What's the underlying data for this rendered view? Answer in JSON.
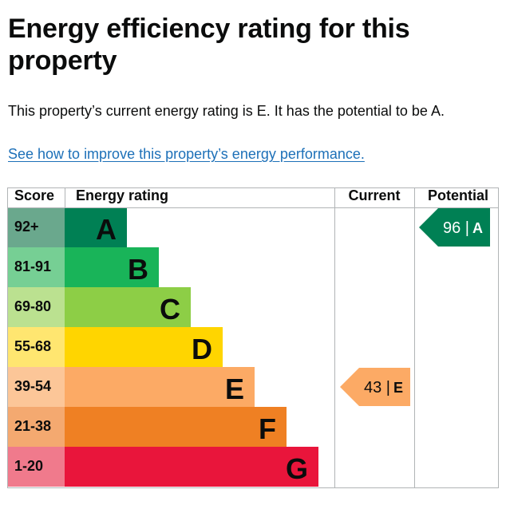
{
  "page": {
    "heading": "Energy efficiency rating for this property",
    "summary": "This property’s current energy rating is E. It has the potential to be A.",
    "improve_link": "See how to improve this property’s energy performance."
  },
  "chart_data": {
    "type": "table",
    "headers": {
      "score": "Score",
      "rating": "Energy rating",
      "current": "Current",
      "potential": "Potential"
    },
    "bands": [
      {
        "score": "92+",
        "letter": "A",
        "color": "#008054",
        "score_bg": "#6aa88d"
      },
      {
        "score": "81-91",
        "letter": "B",
        "color": "#19b459",
        "score_bg": "#76cf94"
      },
      {
        "score": "69-80",
        "letter": "C",
        "color": "#8dce46",
        "score_bg": "#bbe190"
      },
      {
        "score": "55-68",
        "letter": "D",
        "color": "#ffd500",
        "score_bg": "#ffe670"
      },
      {
        "score": "39-54",
        "letter": "E",
        "color": "#fcaa65",
        "score_bg": "#fcc698"
      },
      {
        "score": "21-38",
        "letter": "F",
        "color": "#ef8023",
        "score_bg": "#f4a970"
      },
      {
        "score": "1-20",
        "letter": "G",
        "color": "#e9153b",
        "score_bg": "#f07a8c"
      }
    ],
    "current": {
      "score": 43,
      "letter": "E",
      "label": "43 |",
      "color": "#fcaa65",
      "text_color": "#0b0c0c"
    },
    "potential": {
      "score": 96,
      "letter": "A",
      "label": "96 |",
      "color": "#008054",
      "text_color": "#ffffff"
    }
  }
}
